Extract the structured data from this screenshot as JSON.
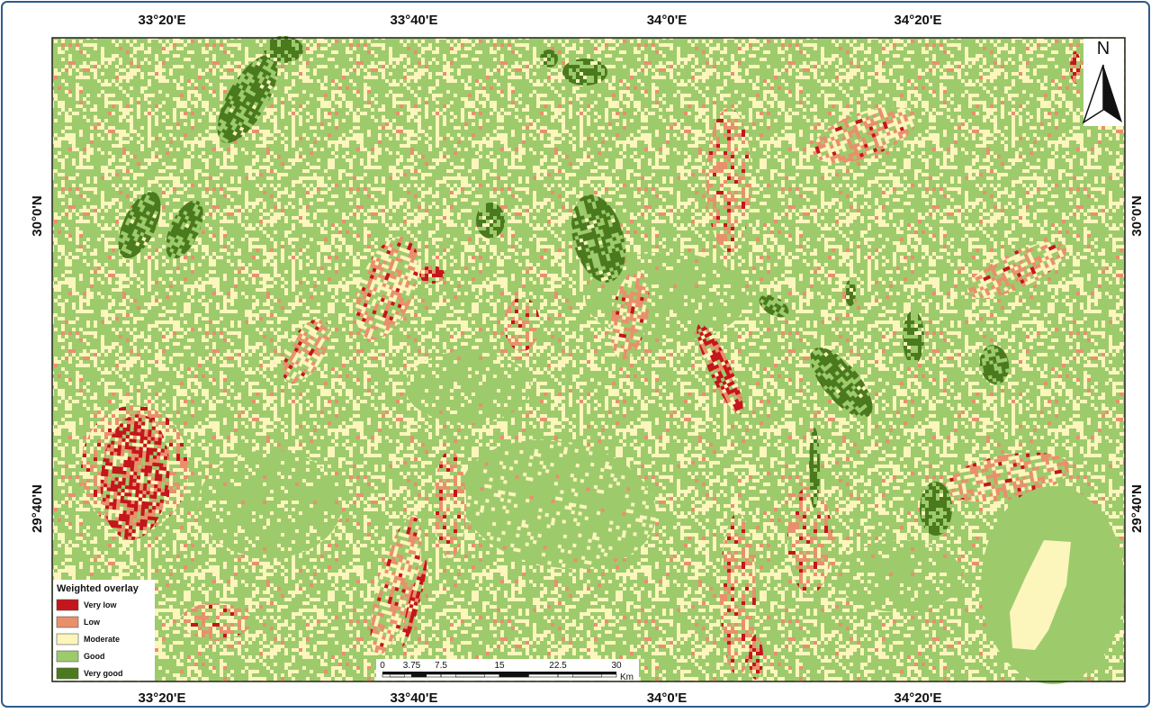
{
  "map": {
    "top_labels": [
      "33°20'E",
      "33°40'E",
      "34°0'E",
      "34°20'E"
    ],
    "bottom_labels": [
      "33°20'E",
      "33°40'E",
      "34°0'E",
      "34°20'E"
    ],
    "left_labels": [
      "30°0'N",
      "29°40'N"
    ],
    "right_labels": [
      "30°0'N",
      "29°40'N"
    ],
    "north_label": "N"
  },
  "legend": {
    "title": "Weighted overlay",
    "items": [
      {
        "label": "Very low",
        "color": "#c4161c"
      },
      {
        "label": "Low",
        "color": "#e8906c"
      },
      {
        "label": "Moderate",
        "color": "#fcf5bc"
      },
      {
        "label": "Good",
        "color": "#9dcb6c"
      },
      {
        "label": "Very good",
        "color": "#4b7a1e"
      }
    ]
  },
  "scale_bar": {
    "ticks": [
      0,
      3.75,
      7.5,
      15,
      22.5,
      30
    ],
    "unit": "Km"
  }
}
